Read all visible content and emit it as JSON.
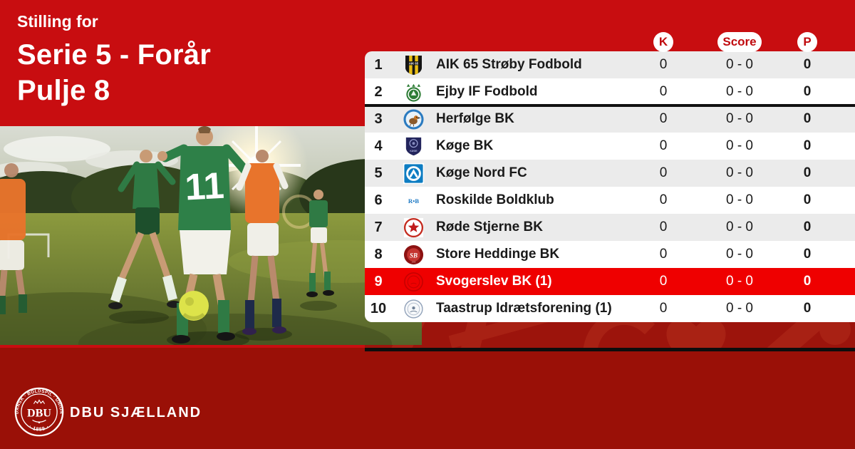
{
  "colors": {
    "red-bright": "#C80D10",
    "red-dark": "#9A1007",
    "red-band": "#9C140C",
    "red-highlight": "#EF0000",
    "row-gray": "#EBEBEB",
    "ink": "#1A1A1A",
    "badge-red": "#C00A0E"
  },
  "header": {
    "eyebrow": "Stilling for",
    "title_line1": "Serie 5 - Forår",
    "title_line2": "Pulje 8"
  },
  "photo": {
    "jersey_number": "11"
  },
  "table": {
    "columns": [
      {
        "key": "k",
        "label": "K"
      },
      {
        "key": "score",
        "label": "Score"
      },
      {
        "key": "p",
        "label": "P"
      }
    ],
    "rows": [
      {
        "pos": "1",
        "team": "AIK 65 Strøby Fodbold",
        "k": "0",
        "score": "0 - 0",
        "p": "0",
        "highlight": false,
        "logo": {
          "icon": "aik-65-stroeby-crest-icon",
          "style": "striped-shield"
        }
      },
      {
        "pos": "2",
        "team": "Ejby IF Fodbold",
        "k": "0",
        "score": "0 - 0",
        "p": "0",
        "highlight": false,
        "logo": {
          "icon": "ejby-if-crest-icon",
          "style": "crowned-circle"
        }
      },
      {
        "pos": "3",
        "team": "Herfølge BK",
        "k": "0",
        "score": "0 - 0",
        "p": "0",
        "highlight": false,
        "logo": {
          "icon": "herfoelge-bk-crest-icon",
          "style": "bird-circle"
        }
      },
      {
        "pos": "4",
        "team": "Køge BK",
        "k": "0",
        "score": "0 - 0",
        "p": "0",
        "highlight": false,
        "logo": {
          "icon": "koege-bk-crest-icon",
          "style": "navy-shield"
        }
      },
      {
        "pos": "5",
        "team": "Køge Nord FC",
        "k": "0",
        "score": "0 - 0",
        "p": "0",
        "highlight": false,
        "logo": {
          "icon": "koege-nord-fc-crest-icon",
          "style": "ring-square"
        }
      },
      {
        "pos": "6",
        "team": "Roskilde Boldklub",
        "k": "0",
        "score": "0 - 0",
        "p": "0",
        "highlight": false,
        "logo": {
          "icon": "roskilde-boldklub-crest-icon",
          "style": "wordmark"
        }
      },
      {
        "pos": "7",
        "team": "Røde Stjerne BK",
        "k": "0",
        "score": "0 - 0",
        "p": "0",
        "highlight": false,
        "logo": {
          "icon": "roede-stjerne-bk-crest-icon",
          "style": "star-circle"
        }
      },
      {
        "pos": "8",
        "team": "Store Heddinge BK",
        "k": "0",
        "score": "0 - 0",
        "p": "0",
        "highlight": false,
        "logo": {
          "icon": "store-heddinge-bk-crest-icon",
          "style": "sb-circle"
        }
      },
      {
        "pos": "9",
        "team": "Svogerslev BK (1)",
        "k": "0",
        "score": "0 - 0",
        "p": "0",
        "highlight": true,
        "logo": {
          "icon": "svogerslev-bk-crest-icon",
          "style": "ghost-circle"
        }
      },
      {
        "pos": "10",
        "team": "Taastrup Idrætsforening (1)",
        "k": "0",
        "score": "0 - 0",
        "p": "0",
        "highlight": false,
        "logo": {
          "icon": "taastrup-if-crest-icon",
          "style": "pale-circle"
        }
      }
    ]
  },
  "footer": {
    "brand": "DBU SJÆLLAND",
    "crest": {
      "ring_text_top": "DANSK · BOLDSPIL · UNION",
      "ring_text_bottom": "· 1889 ·",
      "monogram": "DBU"
    }
  }
}
